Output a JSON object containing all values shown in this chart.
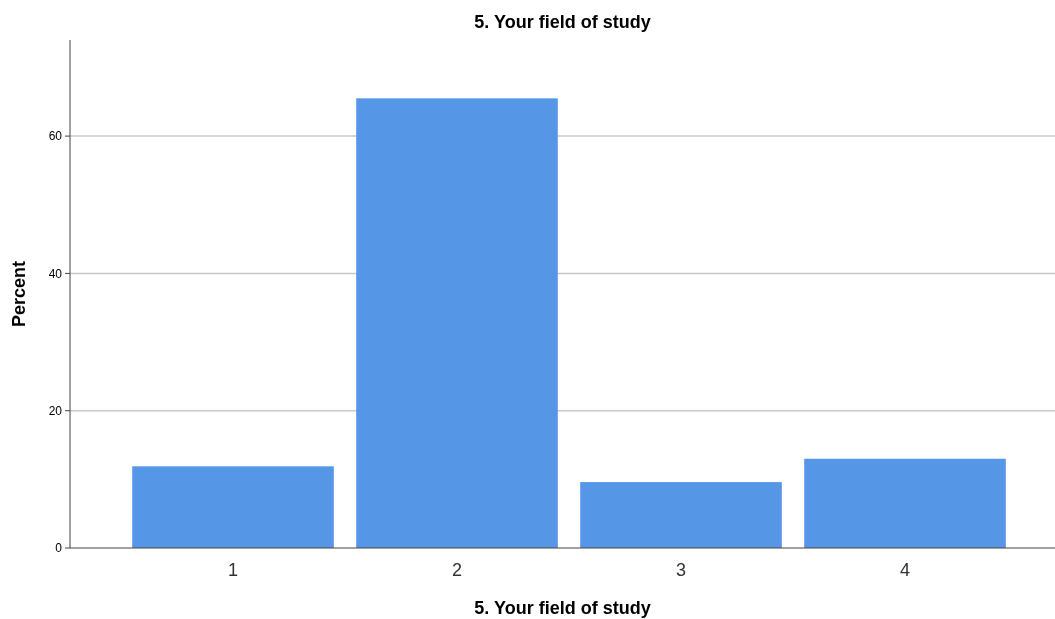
{
  "chart_data": {
    "type": "bar",
    "title": "5. Your field of study",
    "xlabel": "5. Your field of study",
    "ylabel": "Percent",
    "categories": [
      "1",
      "2",
      "3",
      "4"
    ],
    "values": [
      11.9,
      65.5,
      9.6,
      13.0
    ],
    "color": "#5596e6",
    "ylim": [
      0,
      74
    ],
    "yticks": [
      0,
      20,
      40,
      60
    ],
    "grid": "y"
  }
}
